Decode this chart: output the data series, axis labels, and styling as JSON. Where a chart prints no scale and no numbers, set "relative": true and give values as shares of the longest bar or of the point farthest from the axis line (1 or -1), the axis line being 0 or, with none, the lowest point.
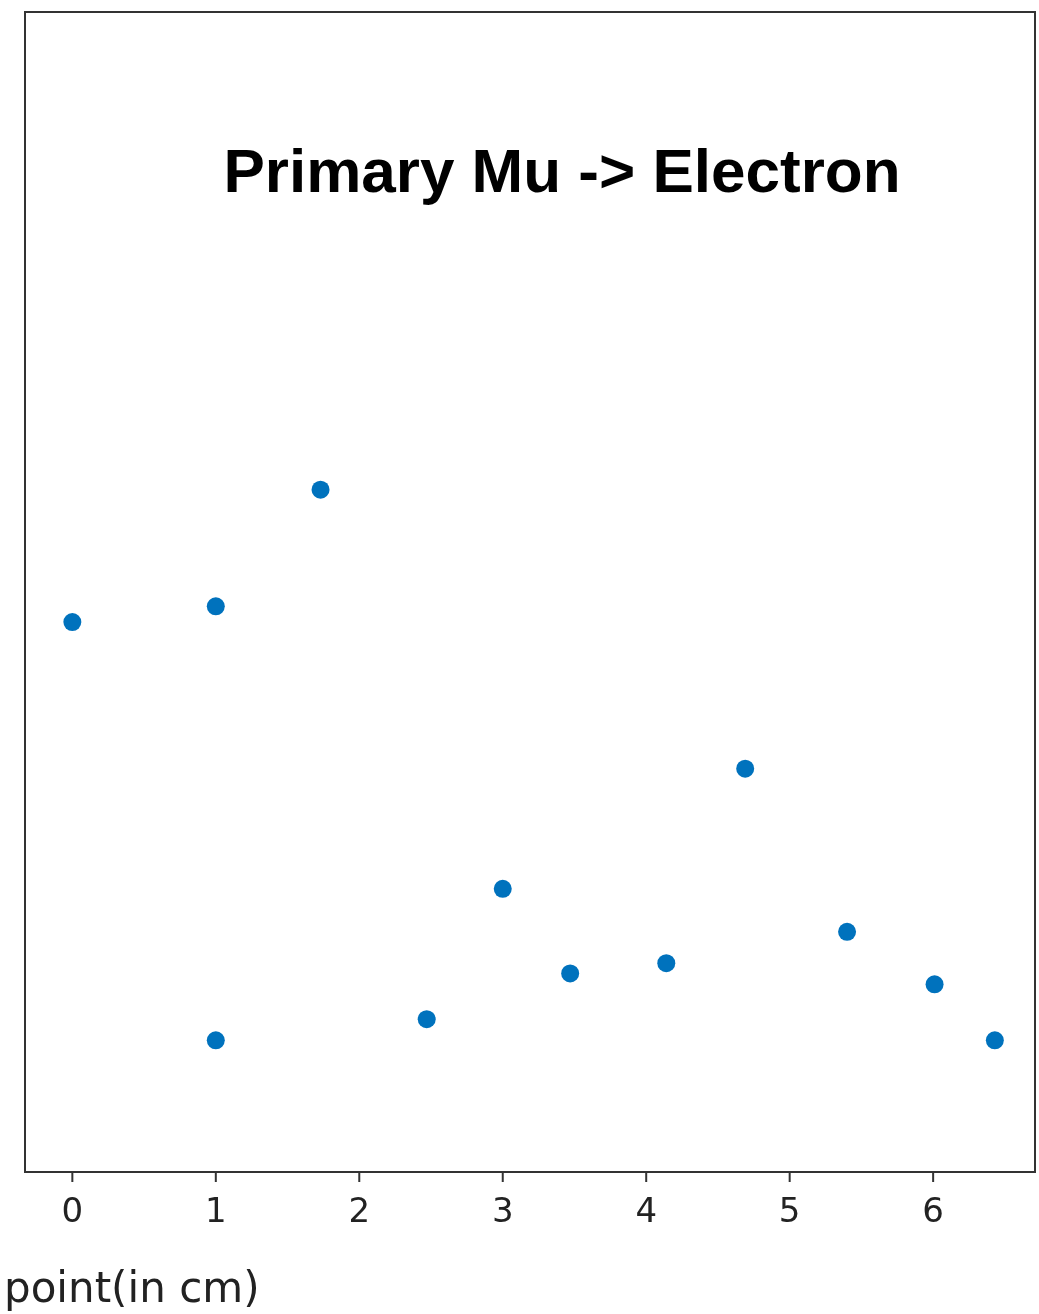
{
  "chart_data": {
    "type": "scatter",
    "title": "Primary Mu -> Electron",
    "xlabel": "point(in cm)",
    "relative": true,
    "tick_labels": "x",
    "marker": "circle",
    "grid": false,
    "xlim": [
      -0.33,
      6.71
    ],
    "xticks": [
      0,
      1,
      2,
      3,
      4,
      5,
      6
    ],
    "x": [
      0,
      1.0,
      1.0,
      1.73,
      2.47,
      3.0,
      3.47,
      4.14,
      4.69,
      5.4,
      6.01,
      6.43
    ],
    "series": [
      {
        "color": "#0072bd",
        "values": [
          0.806,
          0.829,
          0.193,
          1,
          0.224,
          0.415,
          0.291,
          0.306,
          0.591,
          0.352,
          0.275,
          0.193
        ]
      }
    ]
  }
}
